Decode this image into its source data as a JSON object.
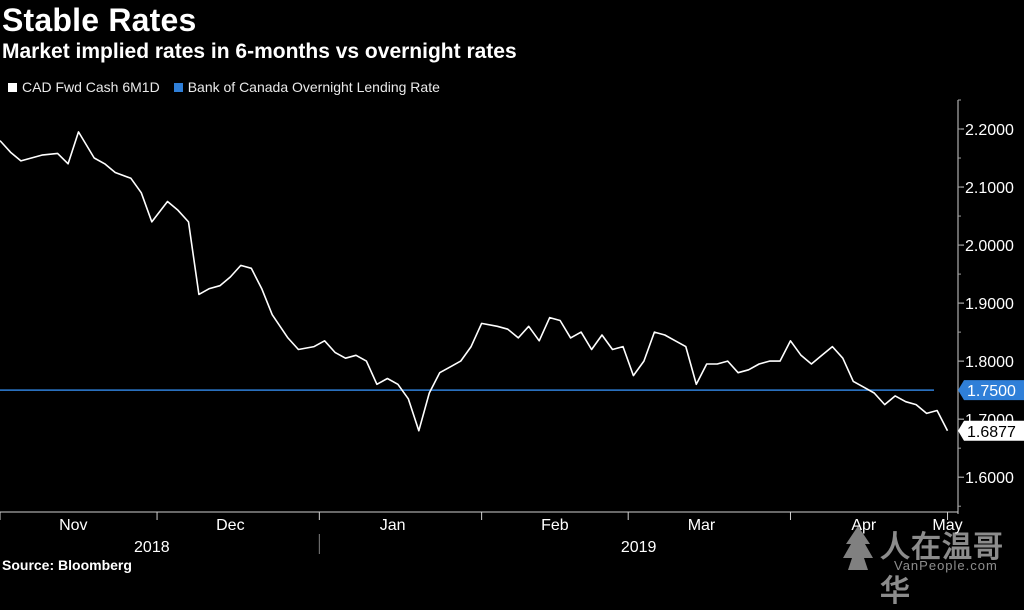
{
  "header": {
    "title": "Stable Rates",
    "subtitle": "Market implied rates in 6-months vs overnight rates"
  },
  "legend": {
    "items": [
      {
        "label": "CAD Fwd Cash 6M1D",
        "color": "#ffffff"
      },
      {
        "label": "Bank of Canada Overnight Lending Rate",
        "color": "#2f7fd8"
      }
    ]
  },
  "footer": {
    "source": "Source: Bloomberg"
  },
  "watermark": {
    "cn": "人在温哥华",
    "en": "VanPeople.com"
  },
  "chart_data": {
    "type": "line",
    "grid": false,
    "y_axis_side": "right",
    "ylim": [
      1.54,
      2.25
    ],
    "yticks": [
      1.6,
      1.7,
      1.8,
      1.9,
      2.0,
      2.1,
      2.2
    ],
    "ytick_labels": [
      "1.6000",
      "1.7000",
      "1.8000",
      "1.9000",
      "2.0000",
      "2.1000",
      "2.2000"
    ],
    "xlim": [
      "2018-11-01",
      "2019-05-03"
    ],
    "x_month_ticks": [
      "2018-11-01",
      "2018-12-01",
      "2019-01-01",
      "2019-02-01",
      "2019-03-01",
      "2019-04-01",
      "2019-05-01"
    ],
    "x_month_labels": [
      {
        "label": "Nov",
        "date": "2018-11-15"
      },
      {
        "label": "Dec",
        "date": "2018-12-15"
      },
      {
        "label": "Jan",
        "date": "2019-01-15"
      },
      {
        "label": "Feb",
        "date": "2019-02-15"
      },
      {
        "label": "Mar",
        "date": "2019-03-15"
      },
      {
        "label": "Apr",
        "date": "2019-04-15"
      },
      {
        "label": "May",
        "date": "2019-05-01"
      }
    ],
    "x_year_labels": [
      {
        "label": "2018",
        "date": "2018-11-30"
      },
      {
        "label": "2019",
        "date": "2019-03-03"
      }
    ],
    "year_divider": "2019-01-01",
    "series": [
      {
        "name": "CAD Fwd Cash 6M1D",
        "color": "#ffffff",
        "last_label": "1.6877",
        "points": [
          [
            "2018-11-01",
            2.18
          ],
          [
            "2018-11-03",
            2.16
          ],
          [
            "2018-11-05",
            2.145
          ],
          [
            "2018-11-07",
            2.15
          ],
          [
            "2018-11-09",
            2.155
          ],
          [
            "2018-11-12",
            2.158
          ],
          [
            "2018-11-14",
            2.14
          ],
          [
            "2018-11-16",
            2.195
          ],
          [
            "2018-11-19",
            2.15
          ],
          [
            "2018-11-21",
            2.14
          ],
          [
            "2018-11-23",
            2.125
          ],
          [
            "2018-11-26",
            2.115
          ],
          [
            "2018-11-28",
            2.09
          ],
          [
            "2018-11-30",
            2.04
          ],
          [
            "2018-12-03",
            2.075
          ],
          [
            "2018-12-05",
            2.06
          ],
          [
            "2018-12-07",
            2.04
          ],
          [
            "2018-12-09",
            1.915
          ],
          [
            "2018-12-11",
            1.925
          ],
          [
            "2018-12-13",
            1.93
          ],
          [
            "2018-12-15",
            1.945
          ],
          [
            "2018-12-17",
            1.965
          ],
          [
            "2018-12-19",
            1.96
          ],
          [
            "2018-12-21",
            1.925
          ],
          [
            "2018-12-23",
            1.88
          ],
          [
            "2018-12-26",
            1.84
          ],
          [
            "2018-12-28",
            1.82
          ],
          [
            "2018-12-31",
            1.825
          ],
          [
            "2019-01-02",
            1.835
          ],
          [
            "2019-01-04",
            1.815
          ],
          [
            "2019-01-06",
            1.805
          ],
          [
            "2019-01-08",
            1.81
          ],
          [
            "2019-01-10",
            1.8
          ],
          [
            "2019-01-12",
            1.76
          ],
          [
            "2019-01-14",
            1.77
          ],
          [
            "2019-01-16",
            1.76
          ],
          [
            "2019-01-18",
            1.735
          ],
          [
            "2019-01-20",
            1.68
          ],
          [
            "2019-01-22",
            1.745
          ],
          [
            "2019-01-24",
            1.78
          ],
          [
            "2019-01-26",
            1.79
          ],
          [
            "2019-01-28",
            1.8
          ],
          [
            "2019-01-30",
            1.825
          ],
          [
            "2019-02-01",
            1.865
          ],
          [
            "2019-02-04",
            1.86
          ],
          [
            "2019-02-06",
            1.855
          ],
          [
            "2019-02-08",
            1.84
          ],
          [
            "2019-02-10",
            1.86
          ],
          [
            "2019-02-12",
            1.835
          ],
          [
            "2019-02-14",
            1.875
          ],
          [
            "2019-02-16",
            1.87
          ],
          [
            "2019-02-18",
            1.84
          ],
          [
            "2019-02-20",
            1.85
          ],
          [
            "2019-02-22",
            1.82
          ],
          [
            "2019-02-24",
            1.845
          ],
          [
            "2019-02-26",
            1.82
          ],
          [
            "2019-02-28",
            1.825
          ],
          [
            "2019-03-02",
            1.775
          ],
          [
            "2019-03-04",
            1.8
          ],
          [
            "2019-03-06",
            1.85
          ],
          [
            "2019-03-08",
            1.845
          ],
          [
            "2019-03-10",
            1.835
          ],
          [
            "2019-03-12",
            1.825
          ],
          [
            "2019-03-14",
            1.76
          ],
          [
            "2019-03-16",
            1.795
          ],
          [
            "2019-03-18",
            1.795
          ],
          [
            "2019-03-20",
            1.8
          ],
          [
            "2019-03-22",
            1.78
          ],
          [
            "2019-03-24",
            1.785
          ],
          [
            "2019-03-26",
            1.795
          ],
          [
            "2019-03-28",
            1.8
          ],
          [
            "2019-03-30",
            1.8
          ],
          [
            "2019-04-01",
            1.835
          ],
          [
            "2019-04-03",
            1.81
          ],
          [
            "2019-04-05",
            1.795
          ],
          [
            "2019-04-07",
            1.81
          ],
          [
            "2019-04-09",
            1.825
          ],
          [
            "2019-04-11",
            1.805
          ],
          [
            "2019-04-13",
            1.765
          ],
          [
            "2019-04-15",
            1.755
          ],
          [
            "2019-04-17",
            1.745
          ],
          [
            "2019-04-19",
            1.725
          ],
          [
            "2019-04-21",
            1.74
          ],
          [
            "2019-04-23",
            1.73
          ],
          [
            "2019-04-25",
            1.725
          ],
          [
            "2019-04-27",
            1.71
          ],
          [
            "2019-04-29",
            1.715
          ],
          [
            "2019-05-01",
            1.68
          ]
        ]
      },
      {
        "name": "Bank of Canada Overnight Lending Rate",
        "color": "#2f7fd8",
        "last_label": "1.7500",
        "flat_value": 1.75
      }
    ]
  }
}
